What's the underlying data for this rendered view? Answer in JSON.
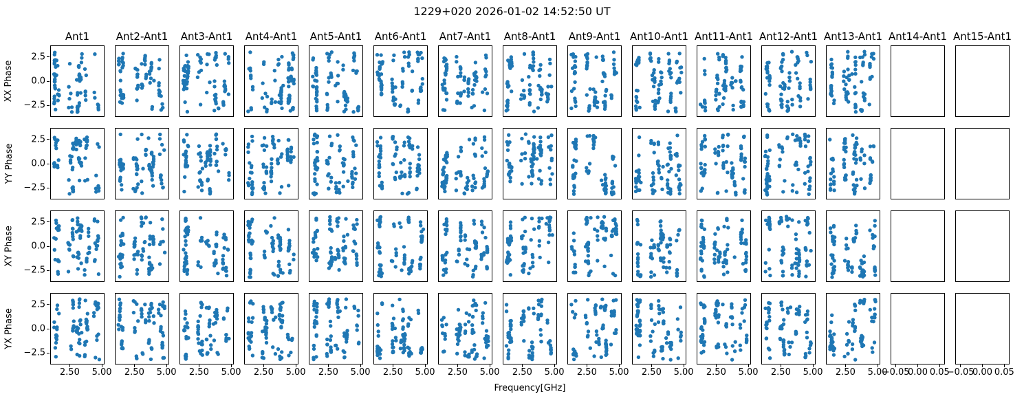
{
  "chart_data": {
    "type": "scatter",
    "title": "1229+020 2026-01-02 14:52:50 UT",
    "xlabel": "Frequency[GHz]",
    "row_labels": [
      "XX Phase",
      "YY Phase",
      "XY Phase",
      "YX Phase"
    ],
    "column_titles": [
      "Ant1",
      "Ant2-Ant1",
      "Ant3-Ant1",
      "Ant4-Ant1",
      "Ant5-Ant1",
      "Ant6-Ant1",
      "Ant7-Ant1",
      "Ant8-Ant1",
      "Ant9-Ant1",
      "Ant10-Ant1",
      "Ant11-Ant1",
      "Ant12-Ant1",
      "Ant13-Ant1",
      "Ant14-Ant1",
      "Ant15-Ant1"
    ],
    "empty_columns": [
      13,
      14
    ],
    "x_axis": {
      "lim": [
        0.98,
        5.21
      ],
      "ticks": [
        2.5,
        5.0
      ],
      "tick_labels": [
        "2.50",
        "5.00"
      ],
      "empty_panel_lim": [
        -0.062,
        0.062
      ],
      "empty_panel_ticks": [
        -0.05,
        0.0,
        0.05
      ],
      "empty_panel_tick_labels": [
        "−0.05",
        "0.00",
        "0.05"
      ]
    },
    "y_axis": {
      "lim": [
        -3.7,
        3.7
      ],
      "ticks": [
        2.5,
        0.0,
        -2.5
      ],
      "tick_labels": [
        "2.5",
        "0.0",
        "−2.5"
      ]
    },
    "marker": {
      "color": "#1f77b4",
      "radius_px": 2.7
    },
    "generation": {
      "points_per_panel": 85,
      "frequency_bands_ghz": [
        [
          1.22,
          1.62
        ],
        [
          2.33,
          2.75
        ],
        [
          2.95,
          3.38
        ],
        [
          3.55,
          3.98
        ],
        [
          4.3,
          4.82
        ]
      ],
      "band_weights": [
        0.26,
        0.185,
        0.185,
        0.185,
        0.185
      ],
      "phase_range": [
        -3.141,
        3.141
      ],
      "run_probability": 0.52,
      "seed_base": 7
    }
  }
}
